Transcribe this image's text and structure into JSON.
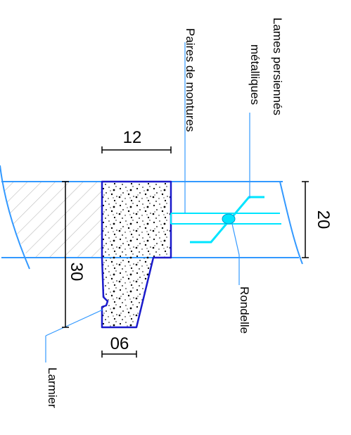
{
  "labels": {
    "lames": [
      "Lames persiennés",
      "métalliques"
    ],
    "paires": "Paires de montures",
    "rondelle": "Rondelle",
    "larmier": "Larmier"
  },
  "dimensions": {
    "top": "12",
    "right": "20",
    "left": "30",
    "bottom": "06"
  },
  "colors": {
    "wall_outline": "#3399ff",
    "hatch": "#bbbbbb",
    "sill_outline": "#1a1acc",
    "louver": "#00e5ff",
    "ink": "#000000"
  }
}
